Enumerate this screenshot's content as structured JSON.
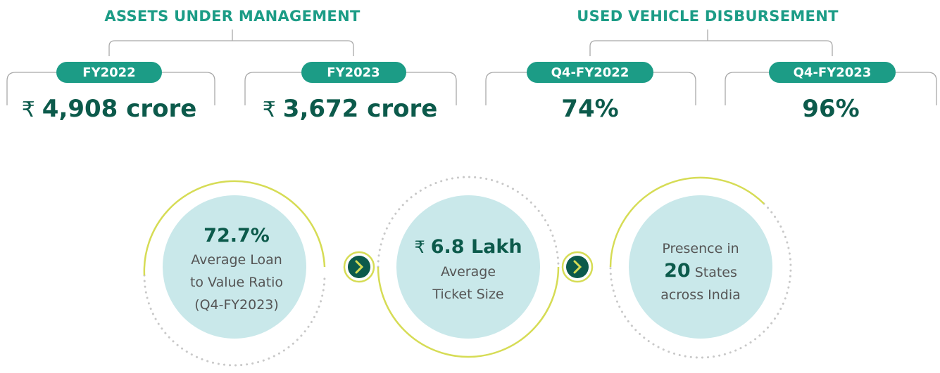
{
  "groups": [
    {
      "title": "ASSETS UNDER MANAGEMENT",
      "items": [
        {
          "period": "FY2022",
          "currency": "₹",
          "value": "4,908 crore"
        },
        {
          "period": "FY2023",
          "currency": "₹",
          "value": "3,672 crore"
        }
      ]
    },
    {
      "title": "USED VEHICLE DISBURSEMENT",
      "items": [
        {
          "period": "Q4-FY2022",
          "value": "74%"
        },
        {
          "period": "Q4-FY2023",
          "value": "96%"
        }
      ]
    }
  ],
  "circles": [
    {
      "value": "72.7%",
      "lines": [
        "Average Loan",
        "to Value Ratio",
        "(Q4-FY2023)"
      ]
    },
    {
      "currency": "₹",
      "value": "6.8 Lakh",
      "lines": [
        "Average",
        "Ticket Size"
      ]
    },
    {
      "before": "Presence in",
      "value": "20",
      "after": "States",
      "tail": "across India"
    }
  ]
}
